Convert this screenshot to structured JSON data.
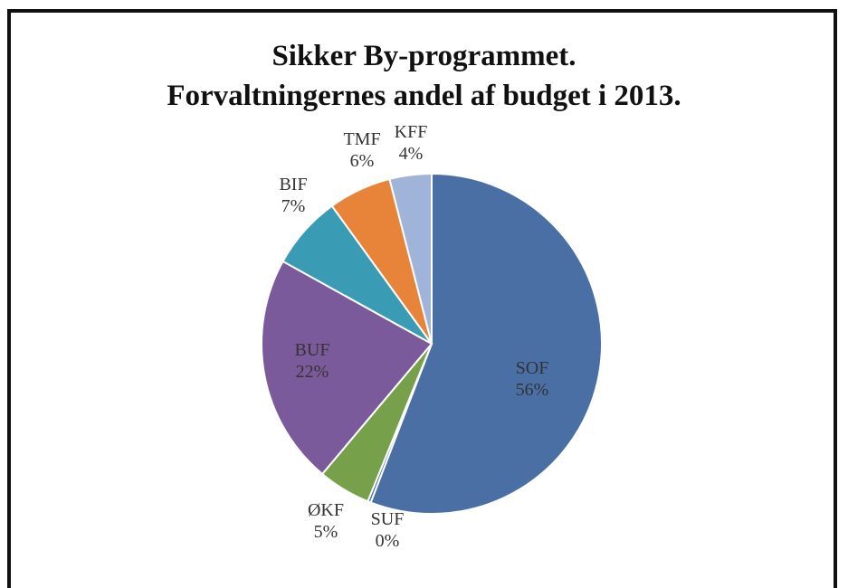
{
  "chart_data": {
    "type": "pie",
    "title": "Sikker By-programmet.",
    "subtitle": "Forvaltningernes andel af budget i 2013.",
    "slices": [
      {
        "label": "SOF",
        "pct_label": "56%",
        "value": 56,
        "color": "#4a6fa5"
      },
      {
        "label": "SUF",
        "pct_label": "0%",
        "value": 0.3,
        "color": "#4a6fa5"
      },
      {
        "label": "ØKF",
        "pct_label": "5%",
        "value": 5,
        "color": "#77a04a"
      },
      {
        "label": "BUF",
        "pct_label": "22%",
        "value": 22,
        "color": "#7b5a9c"
      },
      {
        "label": "BIF",
        "pct_label": "7%",
        "value": 7,
        "color": "#3a9bb5"
      },
      {
        "label": "TMF",
        "pct_label": "6%",
        "value": 6,
        "color": "#e8843a"
      },
      {
        "label": "KFF",
        "pct_label": "4%",
        "value": 4,
        "color": "#9fb4d8"
      }
    ]
  }
}
